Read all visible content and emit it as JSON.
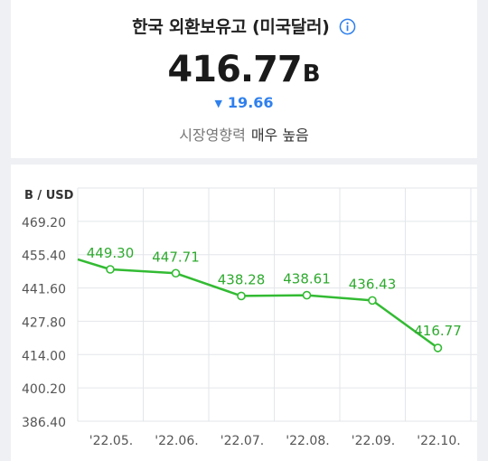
{
  "header": {
    "title": "한국 외환보유고 (미국달러)",
    "value": "416.77",
    "unit": "B",
    "change": "19.66",
    "change_direction": "down",
    "impact_label": "시장영향력",
    "impact_value": "매우 높음"
  },
  "colors": {
    "line": "#33bb33",
    "label": "#2eaa2e",
    "change": "#2f80ed",
    "grid": "#e3e6ea"
  },
  "icons": [
    "info-icon",
    "down-triangle-icon"
  ],
  "chart_data": {
    "type": "line",
    "unit_label": "B / USD",
    "categories": [
      "'22.05.",
      "'22.06.",
      "'22.07.",
      "'22.08.",
      "'22.09.",
      "'22.10."
    ],
    "values": [
      449.3,
      447.71,
      438.28,
      438.61,
      436.43,
      416.77
    ],
    "data_labels": [
      "449.30",
      "447.71",
      "438.28",
      "438.61",
      "436.43",
      "416.77"
    ],
    "y_ticks": [
      "469.20",
      "455.40",
      "441.60",
      "427.80",
      "414.00",
      "400.20",
      "386.40"
    ],
    "ylim": [
      386.4,
      483.0
    ],
    "grid": true
  }
}
